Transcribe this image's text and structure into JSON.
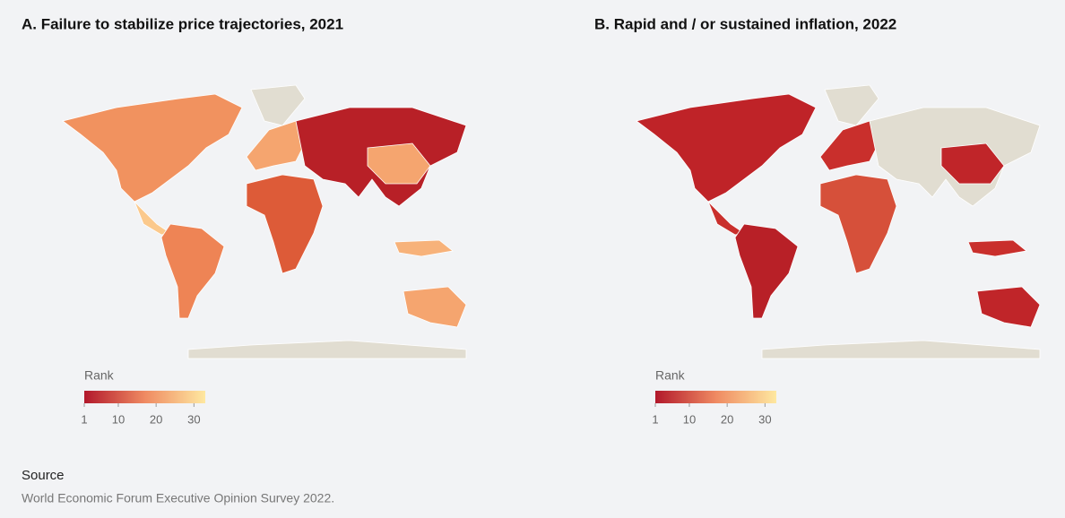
{
  "panels": [
    {
      "title": "A. Failure to stabilize price trajectories, 2021",
      "legend": {
        "title": "Rank",
        "range": [
          1,
          33
        ],
        "ticks": [
          1,
          10,
          20,
          30
        ],
        "colors": [
          "#b2182b",
          "#ef8a62",
          "#fee8a0"
        ]
      }
    },
    {
      "title": "B. Rapid and / or sustained inflation, 2022",
      "legend": {
        "title": "Rank",
        "range": [
          1,
          33
        ],
        "ticks": [
          1,
          10,
          20,
          30
        ],
        "colors": [
          "#b2182b",
          "#ef8a62",
          "#fee8a0"
        ]
      }
    }
  ],
  "source": {
    "label": "Source",
    "text": "World Economic Forum Executive Opinion Survey 2022."
  }
}
